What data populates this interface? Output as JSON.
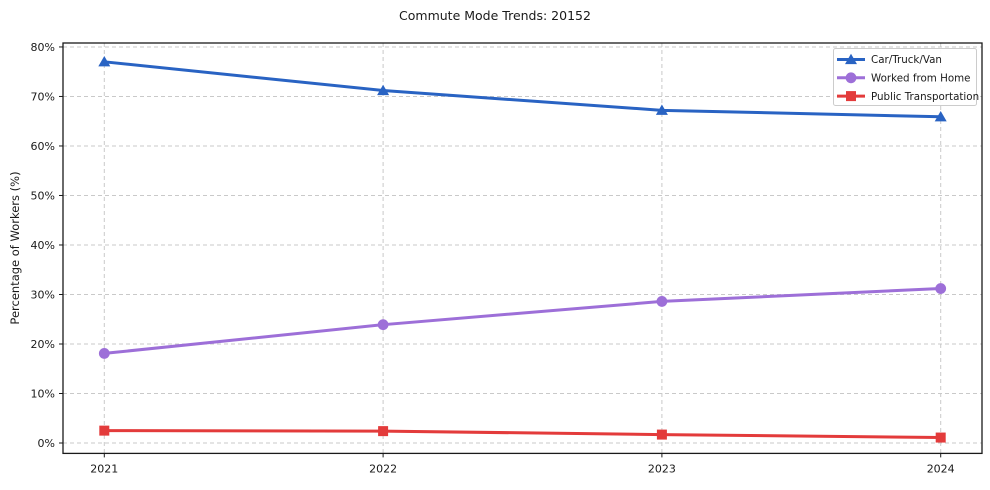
{
  "chart_data": {
    "type": "line",
    "title": "Commute Mode Trends: 20152",
    "xlabel": "",
    "ylabel": "Percentage of Workers (%)",
    "x": [
      "2021",
      "2022",
      "2023",
      "2024"
    ],
    "series": [
      {
        "name": "Car/Truck/Van",
        "color": "#2963c3",
        "marker": "triangle",
        "values": [
          77.0,
          71.2,
          67.2,
          65.9
        ]
      },
      {
        "name": "Worked from Home",
        "color": "#9d6fd8",
        "marker": "circle",
        "values": [
          18.1,
          23.9,
          28.6,
          31.2
        ]
      },
      {
        "name": "Public Transportation",
        "color": "#e33b3b",
        "marker": "square",
        "values": [
          2.5,
          2.4,
          1.7,
          1.1
        ]
      }
    ],
    "ylim": [
      -2.1,
      80.8
    ],
    "yticks": [
      0,
      10,
      20,
      30,
      40,
      50,
      60,
      70,
      80
    ],
    "ytick_format": "{v}%",
    "grid": true,
    "grid_style": "dashed",
    "legend_position": "upper right",
    "colors": {
      "background": "#ffffff",
      "grid": "#c9c9c9",
      "spine": "#1a1a1a",
      "text": "#1a1a1a",
      "legend_border": "#cccccc",
      "legend_background": "#ffffff"
    }
  }
}
